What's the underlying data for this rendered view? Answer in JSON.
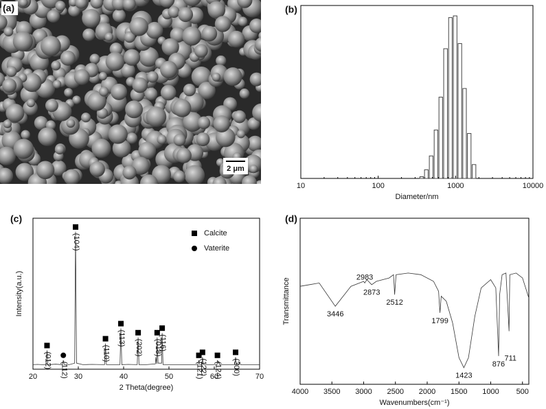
{
  "chart_data": [
    {
      "type": "image",
      "label": "(a)",
      "scale_bar": "2 μm"
    },
    {
      "type": "histogram",
      "label": "(b)",
      "x_label": "Diameter/nm",
      "log_x": true,
      "color": "#444444",
      "bins": [
        340,
        390,
        450,
        520,
        600,
        690,
        800,
        920,
        1060,
        1220,
        1400,
        1610,
        1860
      ],
      "values": [
        1,
        5,
        13,
        28,
        47,
        75,
        93,
        94,
        78,
        52,
        26,
        8
      ],
      "xlim": [
        10,
        10000
      ],
      "xticks": [
        10,
        100,
        1000,
        10000
      ],
      "ylim": [
        0,
        100
      ]
    },
    {
      "type": "line",
      "label": "(c)",
      "x_label": "2 Theta(degree)",
      "y_label": "Intensity(a.u.)",
      "color": "#333333",
      "x": [
        20,
        21,
        22,
        22.9,
        23.1,
        23.3,
        25,
        26.5,
        26.7,
        26.9,
        28,
        29.2,
        29.4,
        29.6,
        31,
        33,
        35.8,
        36.0,
        36.2,
        38,
        39.2,
        39.4,
        39.6,
        41,
        43.0,
        43.2,
        43.4,
        45,
        47.0,
        47.1,
        47.3,
        47.4,
        47.6,
        48.4,
        48.5,
        48.7,
        51,
        54,
        56.4,
        56.6,
        56.8,
        57.3,
        57.4,
        57.6,
        60,
        60.6,
        60.7,
        60.9,
        61,
        61.2,
        64.5,
        64.7,
        64.9,
        65.5,
        65.6,
        65.8,
        70
      ],
      "values": [
        3,
        3.2,
        3,
        3,
        12.5,
        3,
        3.3,
        3,
        6,
        3,
        3,
        4,
        91,
        4,
        3,
        3.2,
        3,
        17,
        3,
        3,
        3,
        27,
        3,
        3.2,
        3,
        21,
        3,
        3,
        3.5,
        8,
        3.5,
        21,
        4,
        4,
        24,
        3,
        3,
        3,
        3,
        6,
        3,
        3,
        8,
        3,
        3,
        3,
        6,
        4,
        5,
        3,
        3,
        8,
        3,
        3,
        5,
        3,
        3
      ],
      "xlim": [
        20,
        70
      ],
      "xticks": [
        20,
        30,
        40,
        50,
        60,
        70
      ],
      "ylim": [
        0,
        100
      ],
      "legend": [
        {
          "name": "Calcite",
          "marker": "square"
        },
        {
          "name": "Vaterite",
          "marker": "circle"
        }
      ],
      "annotations": [
        {
          "x": 23.1,
          "label": "(012)",
          "marker": "square"
        },
        {
          "x": 26.7,
          "label": "(112)",
          "marker": "circle"
        },
        {
          "x": 29.4,
          "label": "(104)",
          "marker": "square"
        },
        {
          "x": 36.0,
          "label": "(110)",
          "marker": "square"
        },
        {
          "x": 39.4,
          "label": "(113)",
          "marker": "square"
        },
        {
          "x": 43.2,
          "label": "(202)",
          "marker": "square"
        },
        {
          "x": 47.4,
          "label": "(018)",
          "marker": "square"
        },
        {
          "x": 48.5,
          "label": "(116)",
          "marker": "square"
        },
        {
          "x": 56.6,
          "label": "(121)",
          "marker": "square"
        },
        {
          "x": 57.4,
          "label": "(122)",
          "marker": "square"
        },
        {
          "x": 60.7,
          "label": "(124)",
          "marker": "square"
        },
        {
          "x": 64.7,
          "label": "(300)",
          "marker": "square"
        }
      ]
    },
    {
      "type": "line",
      "label": "(d)",
      "x_label": "Wavenumbers(cm⁻¹)",
      "y_label": "Transmittance",
      "color": "#333333",
      "x": [
        4000,
        3850,
        3700,
        3446,
        3200,
        3000,
        2983,
        2950,
        2873,
        2800,
        2600,
        2530,
        2512,
        2490,
        2300,
        2100,
        1900,
        1820,
        1799,
        1780,
        1700,
        1600,
        1500,
        1423,
        1350,
        1250,
        1150,
        1000,
        920,
        876,
        860,
        820,
        760,
        711,
        700,
        600,
        500,
        400
      ],
      "values": [
        59,
        60,
        61,
        47,
        59,
        62,
        61,
        63,
        60,
        62,
        64,
        66,
        54,
        66,
        67,
        66,
        62,
        56,
        43,
        53,
        50,
        37,
        16,
        10,
        16,
        41,
        58,
        63,
        58,
        17,
        54,
        66,
        67,
        32,
        66,
        67,
        64,
        52
      ],
      "xlim": [
        4000,
        400
      ],
      "xticks": [
        4000,
        3500,
        3000,
        2500,
        2000,
        1500,
        1000,
        500
      ],
      "ylim": [
        0,
        100
      ],
      "peak_labels": [
        3446,
        2983,
        2873,
        2512,
        1799,
        1423,
        876,
        711
      ]
    }
  ]
}
